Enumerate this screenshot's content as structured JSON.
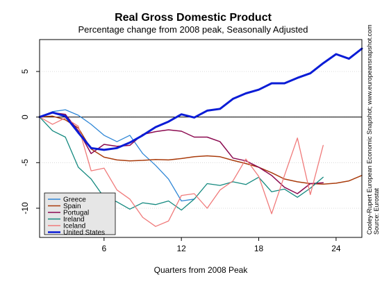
{
  "chart_data": {
    "type": "line",
    "title": "Real Gross Domestic Product",
    "subtitle": "Percentage change from 2008 peak, Seasonally Adjusted",
    "xlabel": "Quarters from 2008 Peak",
    "ylabel": "",
    "xlim": [
      1,
      26
    ],
    "ylim": [
      -13.2,
      8.5
    ],
    "xticks": [
      6,
      12,
      18,
      24
    ],
    "yticks": [
      5,
      0,
      -5,
      -10
    ],
    "grid": "horizontal-dotted",
    "legend_position": "bottom-left",
    "side_notes": [
      "Cooley-Rupert European Economic Snapshot; www.europeansnapshot.com",
      "Source: Eurostat"
    ],
    "series": [
      {
        "name": "Greece",
        "color": "#2e86d6",
        "width": 1.3,
        "x": [
          1,
          2,
          3,
          4,
          5,
          6,
          7,
          8,
          9,
          10,
          11,
          12,
          13
        ],
        "y": [
          0,
          0.6,
          0.8,
          0.2,
          -0.8,
          -2.0,
          -2.7,
          -2.0,
          -4.0,
          -5.3,
          -6.8,
          -9.2,
          -9.0
        ]
      },
      {
        "name": "Spain",
        "color": "#a93b0b",
        "width": 1.5,
        "x": [
          1,
          2,
          3,
          4,
          5,
          6,
          7,
          8,
          9,
          10,
          11,
          12,
          13,
          14,
          15,
          16,
          17,
          18,
          19,
          20,
          21,
          22,
          23,
          24,
          25,
          26
        ],
        "y": [
          0,
          0.1,
          -0.3,
          -1.2,
          -3.5,
          -4.4,
          -4.7,
          -4.8,
          -4.75,
          -4.65,
          -4.7,
          -4.55,
          -4.35,
          -4.25,
          -4.35,
          -4.75,
          -5.1,
          -5.5,
          -6.1,
          -6.8,
          -7.1,
          -7.3,
          -7.35,
          -7.25,
          -7.0,
          -6.4
        ]
      },
      {
        "name": "Portugal",
        "color": "#8b0a50",
        "width": 1.5,
        "x": [
          1,
          2,
          3,
          4,
          5,
          6,
          7,
          8,
          9,
          10,
          11,
          12,
          13,
          14,
          15,
          16,
          17,
          18,
          19,
          20,
          21,
          22,
          23
        ],
        "y": [
          0,
          0.5,
          0.3,
          -1.5,
          -4.0,
          -3.0,
          -3.2,
          -3.1,
          -1.9,
          -1.6,
          -1.4,
          -1.55,
          -2.2,
          -2.2,
          -2.7,
          -4.5,
          -4.8,
          -5.5,
          -6.4,
          -7.7,
          -8.4,
          -7.3,
          -7.2
        ]
      },
      {
        "name": "Ireland",
        "color": "#13897f",
        "width": 1.3,
        "x": [
          1,
          2,
          3,
          4,
          5,
          6,
          7,
          8,
          9,
          10,
          11,
          12,
          13,
          14,
          15,
          16,
          17,
          18,
          19,
          20,
          21,
          22,
          23
        ],
        "y": [
          0,
          -1.5,
          -2.2,
          -5.5,
          -6.8,
          -8.8,
          -9.3,
          -10.1,
          -9.4,
          -9.6,
          -9.2,
          -10.2,
          -9.0,
          -7.3,
          -7.5,
          -7.1,
          -7.4,
          -6.6,
          -8.2,
          -7.9,
          -8.8,
          -7.8,
          -6.6
        ]
      },
      {
        "name": "Iceland",
        "color": "#f07a7a",
        "width": 1.3,
        "x": [
          1,
          2,
          3,
          4,
          5,
          6,
          7,
          8,
          9,
          10,
          11,
          12,
          13,
          14,
          15,
          16,
          17,
          18,
          19,
          20,
          21,
          22,
          23
        ],
        "y": [
          0,
          -0.8,
          -0.1,
          -1.0,
          -5.9,
          -5.6,
          -8.0,
          -9.0,
          -11.0,
          -12.0,
          -11.4,
          -8.6,
          -8.4,
          -10.0,
          -8.0,
          -7.0,
          -4.6,
          -6.5,
          -10.6,
          -6.4,
          -2.3,
          -8.5,
          -3.1
        ]
      },
      {
        "name": "United States",
        "color": "#0a1cd6",
        "width": 3,
        "x": [
          1,
          2,
          3,
          4,
          5,
          6,
          7,
          8,
          9,
          10,
          11,
          12,
          13,
          14,
          15,
          16,
          17,
          18,
          19,
          20,
          21,
          22,
          23,
          24,
          25,
          26
        ],
        "y": [
          0,
          0.5,
          0.1,
          -1.7,
          -3.4,
          -3.6,
          -3.4,
          -2.8,
          -2.0,
          -1.1,
          -0.5,
          0.3,
          -0.05,
          0.7,
          0.9,
          2.0,
          2.6,
          3.0,
          3.7,
          3.7,
          4.3,
          4.8,
          5.9,
          6.9,
          6.4,
          7.5
        ]
      }
    ]
  }
}
